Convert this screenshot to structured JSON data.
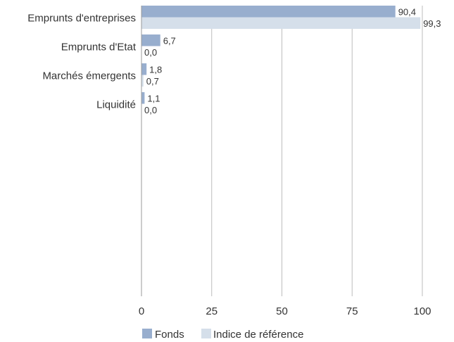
{
  "chart_data": {
    "type": "bar",
    "orientation": "horizontal",
    "categories": [
      "Emprunts d'entreprises",
      "Emprunts d'Etat",
      "Marchés émergents",
      "Liquidité"
    ],
    "series": [
      {
        "name": "Fonds",
        "values": [
          90.4,
          6.7,
          1.8,
          1.1
        ],
        "labels": [
          "90,4",
          "6,7",
          "1,8",
          "1,1"
        ],
        "color": "#98aece"
      },
      {
        "name": "Indice de référence",
        "values": [
          99.3,
          0.0,
          0.7,
          0.0
        ],
        "labels": [
          "99,3",
          "0,0",
          "0,7",
          "0,0"
        ],
        "color": "#d5dfea"
      }
    ],
    "xlim": [
      0,
      100
    ],
    "xticks": [
      0,
      25,
      50,
      75,
      100
    ],
    "xtick_labels": [
      "0",
      "25",
      "50",
      "75",
      "100"
    ],
    "grid": true,
    "legend_position": "bottom",
    "title": "",
    "xlabel": "",
    "ylabel": ""
  }
}
